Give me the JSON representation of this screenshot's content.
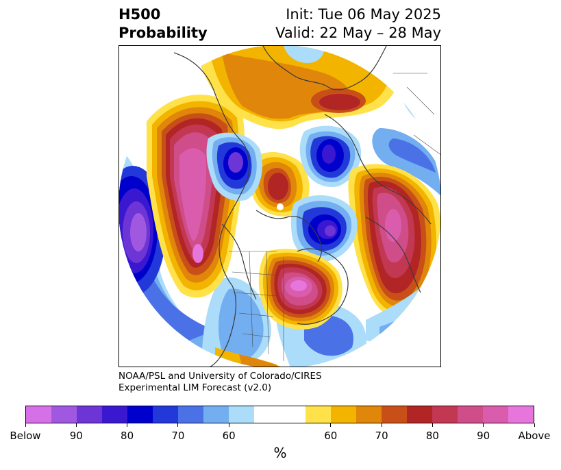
{
  "header": {
    "variable": "H500",
    "product": "Probability",
    "init": "Init: Tue 06 May 2025",
    "valid": "Valid: 22 May – 28 May"
  },
  "credit": {
    "line1": "NOAA/PSL and University of Colorado/CIRES",
    "line2": "Experimental LIM Forecast (v2.0)"
  },
  "colorbar": {
    "colors": [
      "#d670e6",
      "#a158e0",
      "#6e35d6",
      "#3a18d0",
      "#0000cc",
      "#2238d8",
      "#4a72e6",
      "#72aef0",
      "#abdcfa",
      "#ffffff",
      "#ffffff",
      "#ffe24a",
      "#f3b400",
      "#e0860b",
      "#c85018",
      "#b22525",
      "#c23752",
      "#cf4d88",
      "#da5cad",
      "#e676dc"
    ],
    "ticks": [
      "Below",
      "90",
      "80",
      "70",
      "60",
      "60",
      "70",
      "80",
      "90",
      "Above"
    ],
    "unit": "%"
  },
  "map": {
    "projection": "north polar stereographic",
    "below_color": "#0000cc",
    "above_color": "#b22525"
  }
}
